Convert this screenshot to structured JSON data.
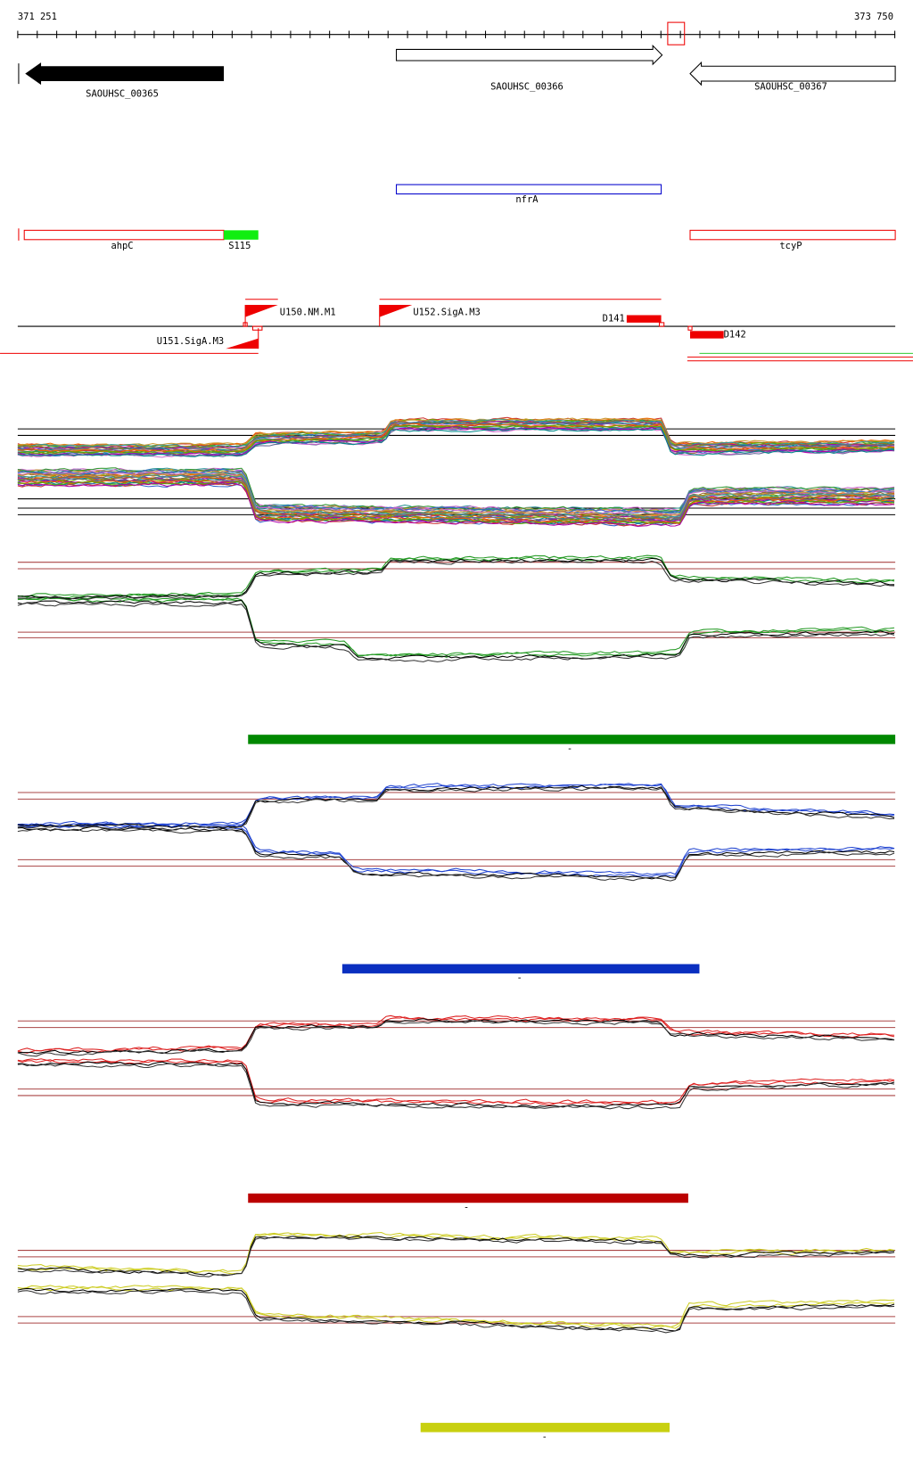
{
  "ruler": {
    "start": "371 251",
    "end": "373 750"
  },
  "genes": [
    {
      "label": "SAOUHSC_00365"
    },
    {
      "label": "SAOUHSC_00366"
    },
    {
      "label": "SAOUHSC_00367"
    }
  ],
  "annotations": [
    {
      "label": "nfrA"
    },
    {
      "label": "ahpC"
    },
    {
      "label": "S115"
    },
    {
      "label": "tcyP"
    }
  ],
  "promoters": [
    {
      "label": "U150.NM.M1"
    },
    {
      "label": "U151.SigA.M3"
    },
    {
      "label": "U152.SigA.M3"
    },
    {
      "label": "D141"
    },
    {
      "label": "D142"
    }
  ],
  "panels": [
    {
      "label": "-"
    },
    {
      "label": "-"
    },
    {
      "label": "-"
    },
    {
      "label": "-"
    }
  ]
}
